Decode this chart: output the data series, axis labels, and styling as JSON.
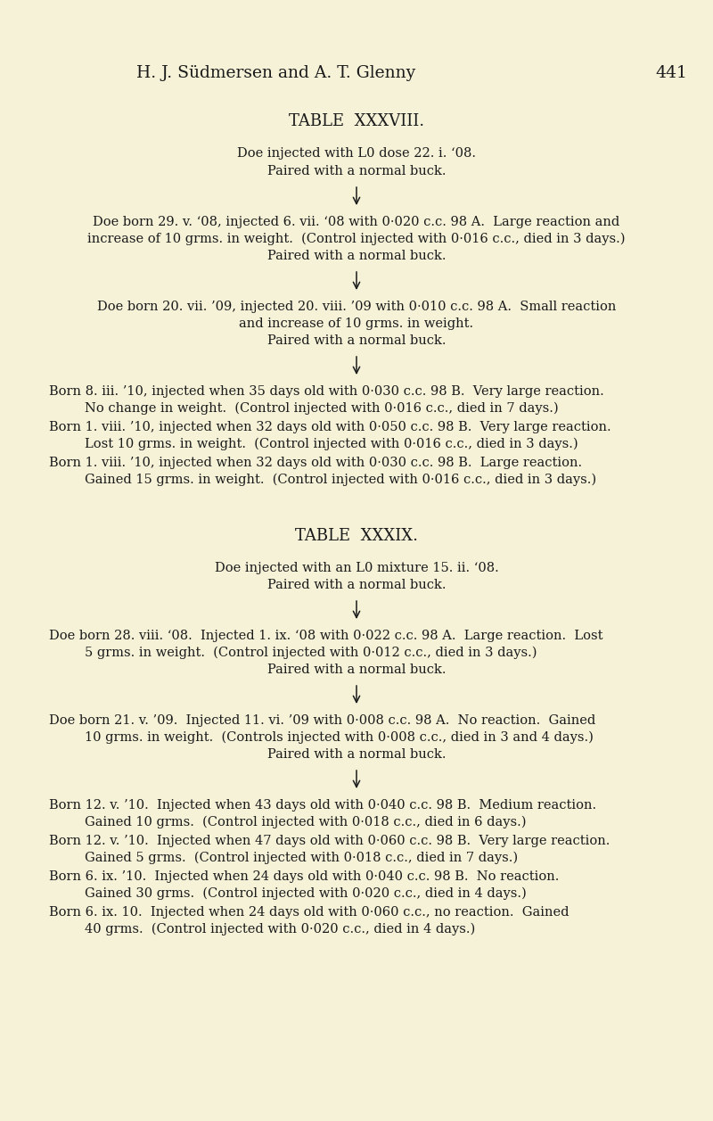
{
  "bg_color": "#f5f2d8",
  "text_color": "#1a1a1a",
  "page_width": 8.0,
  "page_height": 12.57,
  "header_main": "H. J. Südmersen and A. T. Glenny",
  "header_page": "441",
  "t38_title": "TABLE  XXXVIII.",
  "t38_intro_1": "Doe injected with L0 dose 22. i. ‘08.",
  "t38_intro_2": "Paired with a normal buck.",
  "t38_b1_l1": "Doe born 29. v. ‘08, injected 6. vii. ‘08 with 0·020 c.c. 98 A.  Large reaction and",
  "t38_b1_l2": "increase of 10 grms. in weight.  (Control injected with 0·016 c.c., died in 3 days.)",
  "t38_b1_l3": "Paired with a normal buck.",
  "t38_b2_l1": "Doe born 20. vii. ’09, injected 20. viii. ’09 with 0·010 c.c. 98 A.  Small reaction",
  "t38_b2_l2": "and increase of 10 grms. in weight.",
  "t38_b2_l3": "Paired with a normal buck.",
  "t38_b3_l1": "Born 8. iii. ’10, injected when 35 days old with 0·030 c.c. 98 B.  Very large reaction.",
  "t38_b3_l2": "No change in weight.  (Control injected with 0·016 c.c., died in 7 days.)",
  "t38_b3_l3": "Born 1. viii. ’10, injected when 32 days old with 0·050 c.c. 98 B.  Very large reaction.",
  "t38_b3_l4": "Lost 10 grms. in weight.  (Control injected with 0·016 c.c., died in 3 days.)",
  "t38_b3_l5": "Born 1. viii. ’10, injected when 32 days old with 0·030 c.c. 98 B.  Large reaction.",
  "t38_b3_l6": "Gained 15 grms. in weight.  (Control injected with 0·016 c.c., died in 3 days.)",
  "t39_title": "TABLE  XXXIX.",
  "t39_intro_1": "Doe injected with an L0 mixture 15. ii. ‘08.",
  "t39_intro_2": "Paired with a normal buck.",
  "t39_b1_l1": "Doe born 28. viii. ‘08.  Injected 1. ix. ‘08 with 0·022 c.c. 98 A.  Large reaction.  Lost",
  "t39_b1_l2": "5 grms. in weight.  (Control injected with 0·012 c.c., died in 3 days.)",
  "t39_b1_l3": "Paired with a normal buck.",
  "t39_b2_l1": "Doe born 21. v. ’09.  Injected 11. vi. ’09 with 0·008 c.c. 98 A.  No reaction.  Gained",
  "t39_b2_l2": "10 grms. in weight.  (Controls injected with 0·008 c.c., died in 3 and 4 days.)",
  "t39_b2_l3": "Paired with a normal buck.",
  "t39_b3_l1": "Born 12. v. ’10.  Injected when 43 days old with 0·040 c.c. 98 B.  Medium reaction.",
  "t39_b3_l2": "Gained 10 grms.  (Control injected with 0·018 c.c., died in 6 days.)",
  "t39_b3_l3": "Born 12. v. ’10.  Injected when 47 days old with 0·060 c.c. 98 B.  Very large reaction.",
  "t39_b3_l4": "Gained 5 grms.  (Control injected with 0·018 c.c., died in 7 days.)",
  "t39_b3_l5": "Born 6. ix. ’10.  Injected when 24 days old with 0·040 c.c. 98 B.  No reaction.",
  "t39_b3_l6": "Gained 30 grms.  (Control injected with 0·020 c.c., died in 4 days.)",
  "t39_b3_l7": "Born 6. ix. 10.  Injected when 24 days old with 0·060 c.c., no reaction.  Gained",
  "t39_b3_l8": "40 grms.  (Control injected with 0·020 c.c., died in 4 days.)",
  "lf": 10.5,
  "ls": 11.5,
  "lt": 13.0,
  "lh": 13.5
}
